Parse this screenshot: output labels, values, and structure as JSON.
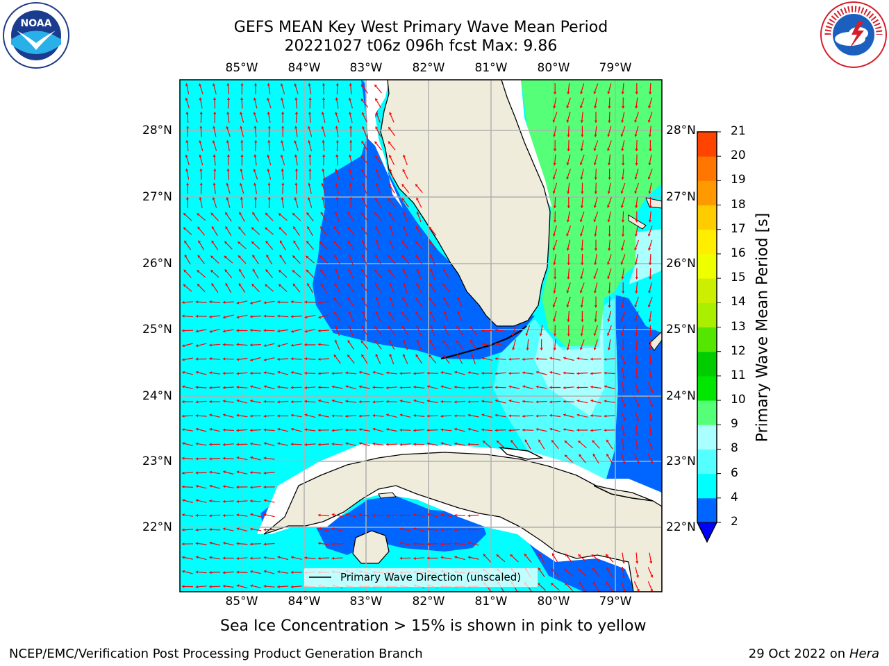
{
  "title": {
    "line1": "GEFS MEAN Key West Primary Wave Mean Period",
    "line2": "20221027 t06z 096h fcst   Max: 9.86"
  },
  "logos": {
    "left": {
      "icon": "noaa-logo-icon",
      "text": "NOAA"
    },
    "right": {
      "icon": "nws-logo-icon",
      "text": "NATIONAL WEATHER SERVICE"
    }
  },
  "map": {
    "lon_labels": [
      "85°W",
      "84°W",
      "83°W",
      "82°W",
      "81°W",
      "80°W",
      "79°W"
    ],
    "lat_labels": [
      "28°N",
      "27°N",
      "26°N",
      "25°N",
      "24°N",
      "23°N",
      "22°N"
    ],
    "legend_label": "Primary Wave Direction (unscaled)",
    "land_color": "#efecdc",
    "grid_color": "#b0b0b0",
    "arrow_color": "#ff0000"
  },
  "colorbar": {
    "label": "Primary Wave Mean Period [s]",
    "ticks": [
      "2",
      "4",
      "6",
      "8",
      "9",
      "10",
      "11",
      "12",
      "13",
      "14",
      "15",
      "16",
      "17",
      "18",
      "19",
      "20",
      "21"
    ],
    "colors": [
      "#0066ff",
      "#00ffff",
      "#55ffff",
      "#aaffff",
      "#55ff77",
      "#00e600",
      "#00cc00",
      "#55e600",
      "#aaee00",
      "#ccee00",
      "#eeff00",
      "#ffee00",
      "#ffcc00",
      "#ff9900",
      "#ff7700",
      "#ff4400",
      "#ff0000"
    ],
    "extend_color": "#0000ff"
  },
  "note": "Sea Ice Concentration > 15% is shown in pink to yellow",
  "footer": {
    "left": "NCEP/EMC/Verification Post Processing Product Generation Branch",
    "right_prefix": "29 Oct 2022 on ",
    "right_host": "Hera"
  }
}
